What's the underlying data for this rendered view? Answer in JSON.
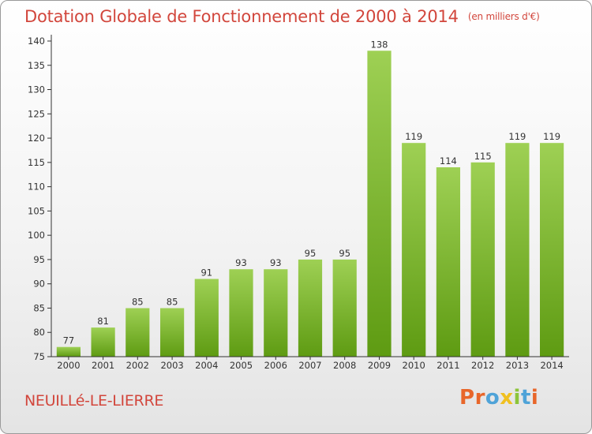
{
  "header": {
    "title": "Dotation Globale de Fonctionnement de 2000 à 2014",
    "unit_note": "(en milliers d'€)"
  },
  "footer": {
    "commune": "NEUILLé-LE-LIERRE",
    "logo_text": "Proxiti"
  },
  "colors": {
    "title": "#d2463c",
    "bar_light": "#9ed054",
    "bar_dark": "#5e9b12",
    "axis": "#333333",
    "logo_letters": [
      "#e8662a",
      "#e8662a",
      "#4fa3d8",
      "#f0c020",
      "#8cc43a",
      "#4fa3d8",
      "#e8662a"
    ]
  },
  "chart_data": {
    "type": "bar",
    "title": "Dotation Globale de Fonctionnement de 2000 à 2014",
    "subtitle": "(en milliers d'€)",
    "xlabel": "",
    "ylabel": "",
    "ylim": [
      75,
      140
    ],
    "yticks": [
      75,
      80,
      85,
      90,
      95,
      100,
      105,
      110,
      115,
      120,
      125,
      130,
      135,
      140
    ],
    "grid": false,
    "categories": [
      "2000",
      "2001",
      "2002",
      "2003",
      "2004",
      "2005",
      "2006",
      "2007",
      "2008",
      "2009",
      "2010",
      "2011",
      "2012",
      "2013",
      "2014"
    ],
    "values": [
      77,
      81,
      85,
      85,
      91,
      93,
      93,
      95,
      95,
      138,
      119,
      114,
      115,
      119,
      119
    ]
  }
}
